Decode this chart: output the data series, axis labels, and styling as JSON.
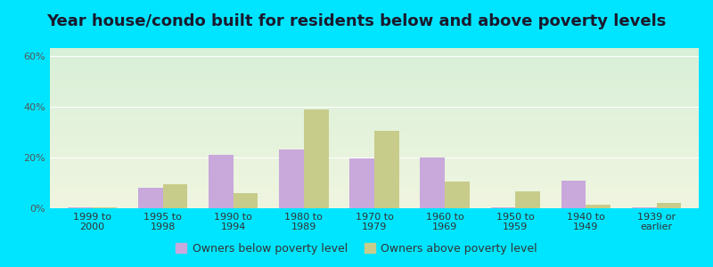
{
  "title": "Year house/condo built for residents below and above poverty levels",
  "categories": [
    "1999 to\n2000",
    "1995 to\n1998",
    "1990 to\n1994",
    "1980 to\n1989",
    "1970 to\n1979",
    "1960 to\n1969",
    "1950 to\n1959",
    "1940 to\n1949",
    "1939 or\nearlier"
  ],
  "below_poverty": [
    0.5,
    8.0,
    21.0,
    23.0,
    19.5,
    20.0,
    0.5,
    11.0,
    0.5
  ],
  "above_poverty": [
    0.5,
    9.5,
    6.0,
    39.0,
    30.5,
    10.5,
    6.5,
    1.5,
    2.0
  ],
  "below_color": "#c9a8dc",
  "above_color": "#c8cc8a",
  "bg_top_color": "#d8f0d8",
  "bg_bottom_color": "#f0f5e0",
  "outer_bg_color": "#00e5ff",
  "ylabel_ticks": [
    "0%",
    "20%",
    "40%",
    "60%"
  ],
  "ytick_values": [
    0,
    20,
    40,
    60
  ],
  "ylim": [
    0,
    63
  ],
  "bar_width": 0.35,
  "legend_below_label": "Owners below poverty level",
  "legend_above_label": "Owners above poverty level",
  "title_fontsize": 13,
  "tick_fontsize": 8,
  "legend_fontsize": 9
}
